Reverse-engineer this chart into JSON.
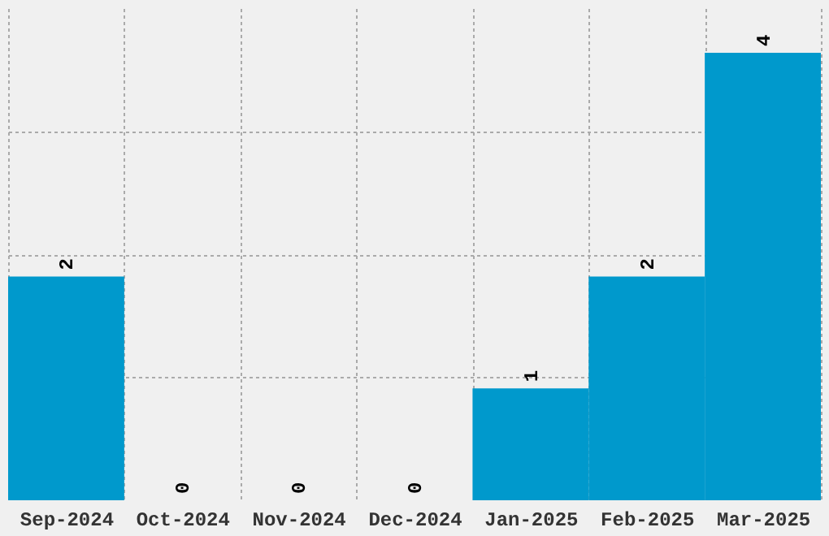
{
  "chart_data": {
    "type": "bar",
    "categories": [
      "Sep-2024",
      "Oct-2024",
      "Nov-2024",
      "Dec-2024",
      "Jan-2025",
      "Feb-2025",
      "Mar-2025"
    ],
    "values": [
      2,
      0,
      0,
      0,
      1,
      2,
      4
    ],
    "color": "#0099cc",
    "data_labels": true,
    "grid": true,
    "tick_labels": "x",
    "ylim": [
      0,
      4.4
    ],
    "yticks": [
      {
        "value": 1.1,
        "label": null
      },
      {
        "value": 2.2,
        "label": null
      },
      {
        "value": 3.3,
        "label": null
      }
    ]
  }
}
